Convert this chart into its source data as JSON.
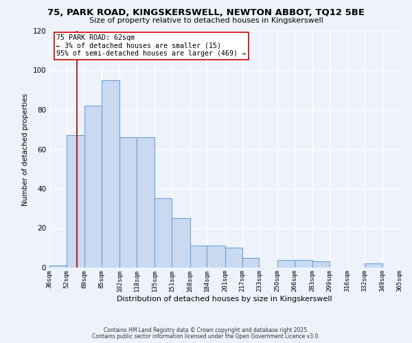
{
  "title": "75, PARK ROAD, KINGSKERSWELL, NEWTON ABBOT, TQ12 5BE",
  "subtitle": "Size of property relative to detached houses in Kingskerswell",
  "xlabel": "Distribution of detached houses by size in Kingskerswell",
  "ylabel": "Number of detached properties",
  "bin_edges": [
    36,
    52,
    69,
    85,
    102,
    118,
    135,
    151,
    168,
    184,
    201,
    217,
    233,
    250,
    266,
    283,
    299,
    316,
    332,
    349,
    365
  ],
  "bin_labels": [
    "36sqm",
    "52sqm",
    "69sqm",
    "85sqm",
    "102sqm",
    "118sqm",
    "135sqm",
    "151sqm",
    "168sqm",
    "184sqm",
    "201sqm",
    "217sqm",
    "233sqm",
    "250sqm",
    "266sqm",
    "283sqm",
    "299sqm",
    "316sqm",
    "332sqm",
    "349sqm",
    "365sqm"
  ],
  "values": [
    1,
    67,
    82,
    95,
    66,
    66,
    35,
    25,
    11,
    11,
    10,
    5,
    0,
    4,
    4,
    3,
    0,
    0,
    2,
    0
  ],
  "bar_color": "#c8d9f0",
  "bar_edge_color": "#5b9bd5",
  "vline_x": 62,
  "vline_color": "#aa0000",
  "annotation_title": "75 PARK ROAD: 62sqm",
  "annotation_line1": "← 3% of detached houses are smaller (15)",
  "annotation_line2": "95% of semi-detached houses are larger (469) →",
  "annotation_box_color": "#ffffff",
  "annotation_box_edge": "#cc0000",
  "ylim": [
    0,
    120
  ],
  "yticks": [
    0,
    20,
    40,
    60,
    80,
    100,
    120
  ],
  "footer1": "Contains HM Land Registry data © Crown copyright and database right 2025.",
  "footer2": "Contains public sector information licensed under the Open Government Licence v3.0.",
  "bg_color": "#edf2fb",
  "grid_color": "#ffffff",
  "title_fontsize": 9.5,
  "subtitle_fontsize": 8.0,
  "xlabel_fontsize": 8.0,
  "ylabel_fontsize": 7.5,
  "tick_fontsize": 6.5,
  "footer_fontsize": 5.5,
  "ann_fontsize": 7.2
}
